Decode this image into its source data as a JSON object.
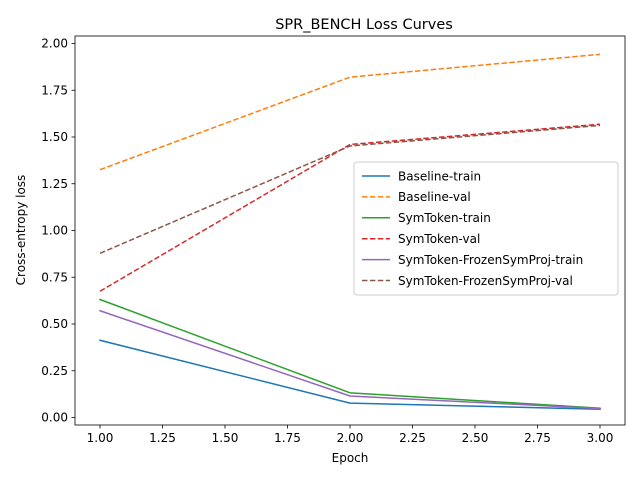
{
  "chart_data": {
    "type": "line",
    "title": "SPR_BENCH Loss Curves",
    "xlabel": "Epoch",
    "ylabel": "Cross-entropy loss",
    "x": [
      1.0,
      2.0,
      3.0
    ],
    "xlim": [
      0.9,
      3.1
    ],
    "ylim": [
      -0.04,
      2.04
    ],
    "xticks": [
      1.0,
      1.25,
      1.5,
      1.75,
      2.0,
      2.25,
      2.5,
      2.75,
      3.0
    ],
    "xtick_labels": [
      "1.00",
      "1.25",
      "1.50",
      "1.75",
      "2.00",
      "2.25",
      "2.50",
      "2.75",
      "3.00"
    ],
    "yticks": [
      0.0,
      0.25,
      0.5,
      0.75,
      1.0,
      1.25,
      1.5,
      1.75,
      2.0
    ],
    "ytick_labels": [
      "0.00",
      "0.25",
      "0.50",
      "0.75",
      "1.00",
      "1.25",
      "1.50",
      "1.75",
      "2.00"
    ],
    "grid": false,
    "legend_position": "center-right",
    "series": [
      {
        "name": "Baseline-train",
        "values": [
          0.413,
          0.077,
          0.044
        ],
        "color": "#1f77b4",
        "dashed": false
      },
      {
        "name": "Baseline-val",
        "values": [
          1.325,
          1.82,
          1.942
        ],
        "color": "#ff7f0e",
        "dashed": true
      },
      {
        "name": "SymToken-train",
        "values": [
          0.631,
          0.132,
          0.05
        ],
        "color": "#2ca02c",
        "dashed": false
      },
      {
        "name": "SymToken-val",
        "values": [
          0.675,
          1.46,
          1.568
        ],
        "color": "#d62728",
        "dashed": true
      },
      {
        "name": "SymToken-FrozenSymProj-train",
        "values": [
          0.571,
          0.115,
          0.048
        ],
        "color": "#9467bd",
        "dashed": false
      },
      {
        "name": "SymToken-FrozenSymProj-val",
        "values": [
          0.878,
          1.452,
          1.562
        ],
        "color": "#8c564b",
        "dashed": true
      }
    ]
  }
}
